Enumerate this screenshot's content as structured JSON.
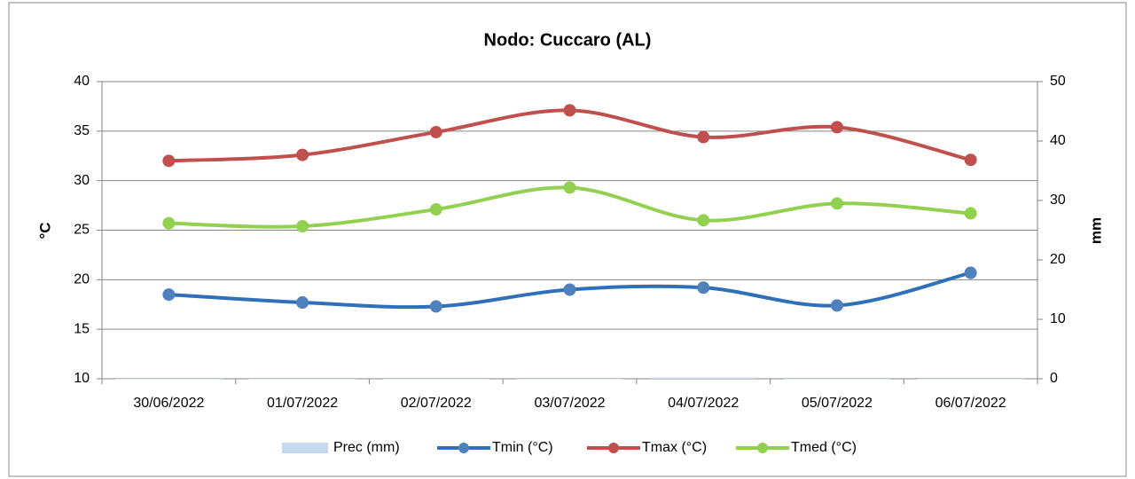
{
  "chart_data": {
    "type": "line",
    "title": "Nodo: Cuccaro (AL)",
    "y_label": "°C",
    "y2_label": "mm",
    "categories": [
      "30/06/2022",
      "01/07/2022",
      "02/07/2022",
      "03/07/2022",
      "04/07/2022",
      "05/07/2022",
      "06/07/2022"
    ],
    "ylim": [
      10,
      40
    ],
    "yticks": [
      10,
      15,
      20,
      25,
      30,
      35,
      40
    ],
    "y2lim": [
      0,
      50
    ],
    "y2ticks": [
      0,
      10,
      20,
      30,
      40,
      50
    ],
    "grid": true,
    "legend": "bottom",
    "series": [
      {
        "name": "Prec (mm)",
        "kind": "bar",
        "axis": "y2",
        "color": "#c6d9f1",
        "values": [
          0,
          0,
          0,
          0,
          0.2,
          0,
          0
        ]
      },
      {
        "name": "Tmin (°C)",
        "color": "#2f70b8",
        "marker_color": "#4f81bd",
        "values": [
          18.5,
          17.7,
          17.3,
          19.0,
          19.2,
          17.4,
          20.7
        ]
      },
      {
        "name": "Tmax (°C)",
        "color": "#c0504d",
        "marker_color": "#c0504d",
        "values": [
          32.0,
          32.6,
          34.9,
          37.1,
          34.4,
          35.4,
          32.1
        ]
      },
      {
        "name": "Tmed (°C)",
        "color": "#92d050",
        "marker_color": "#92d050",
        "values": [
          25.7,
          25.4,
          27.1,
          29.3,
          26.0,
          27.7,
          26.7
        ]
      }
    ]
  }
}
